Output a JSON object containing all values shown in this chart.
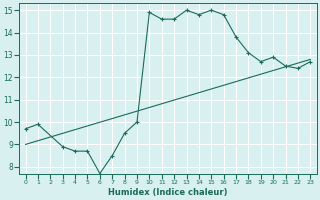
{
  "line1_x": [
    0,
    1,
    3,
    4,
    5,
    6,
    7,
    8,
    9,
    10,
    11,
    12,
    13,
    14,
    15,
    16,
    17,
    18,
    19,
    20,
    21,
    22,
    23
  ],
  "line1_y": [
    9.7,
    9.9,
    8.9,
    8.7,
    8.7,
    7.7,
    8.5,
    9.5,
    10.0,
    14.9,
    14.6,
    14.6,
    15.0,
    14.8,
    15.0,
    14.8,
    13.8,
    13.1,
    12.7,
    12.9,
    12.5,
    12.4,
    12.7
  ],
  "line2_x": [
    0,
    23
  ],
  "line2_y": [
    9.0,
    12.8
  ],
  "line_color": "#1a6b5a",
  "bg_color": "#d8f0f0",
  "grid_color": "#ffffff",
  "xlabel": "Humidex (Indice chaleur)",
  "xlim": [
    -0.5,
    23.5
  ],
  "ylim": [
    7.7,
    15.3
  ],
  "yticks": [
    8,
    9,
    10,
    11,
    12,
    13,
    14,
    15
  ],
  "xticks": [
    0,
    1,
    2,
    3,
    4,
    5,
    6,
    7,
    8,
    9,
    10,
    11,
    12,
    13,
    14,
    15,
    16,
    17,
    18,
    19,
    20,
    21,
    22,
    23
  ],
  "marker": "+"
}
